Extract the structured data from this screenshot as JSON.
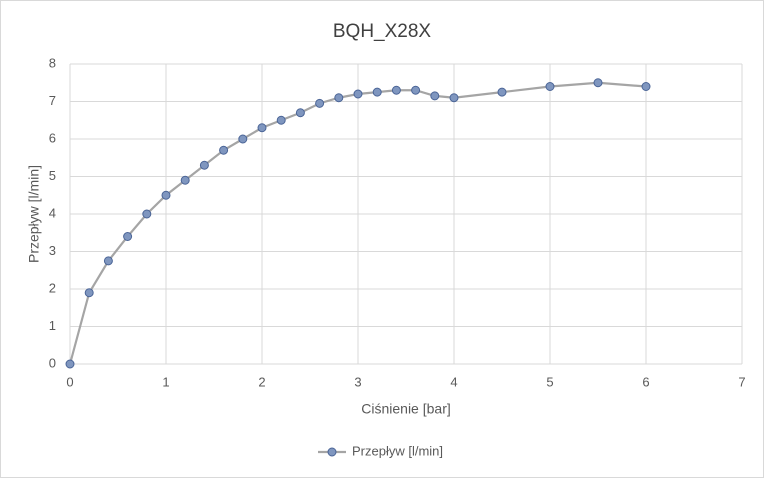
{
  "chart_data": {
    "type": "scatter",
    "title": "BQH_X28X",
    "x_label": "Ciśnienie [bar]",
    "y_label": "Przepływ [l/min]",
    "xlim": [
      0,
      7
    ],
    "xticks": [
      0,
      1,
      2,
      3,
      4,
      5,
      6,
      7
    ],
    "ylim": [
      0,
      8
    ],
    "yticks": [
      0,
      1,
      2,
      3,
      4,
      5,
      6,
      7,
      8
    ],
    "grid": true,
    "legend": "bottom",
    "series": [
      {
        "name": "Przepływ [l/min]",
        "color": "#a5a5a5",
        "marker_color": "#7f96bf",
        "marker_edge": "#4a6496",
        "x": [
          0,
          0.2,
          0.4,
          0.6,
          0.8,
          1,
          1.2,
          1.4,
          1.6,
          1.8,
          2,
          2.2,
          2.4,
          2.6,
          2.8,
          3,
          3.2,
          3.4,
          3.6,
          3.8,
          4,
          4.5,
          5,
          5.5,
          6
        ],
        "values": [
          0,
          1.9,
          2.75,
          3.4,
          4.0,
          4.5,
          4.9,
          5.3,
          5.7,
          6.0,
          6.3,
          6.5,
          6.7,
          6.95,
          7.1,
          7.2,
          7.25,
          7.3,
          7.3,
          7.15,
          7.1,
          7.25,
          7.4,
          7.5,
          7.4
        ]
      }
    ]
  }
}
